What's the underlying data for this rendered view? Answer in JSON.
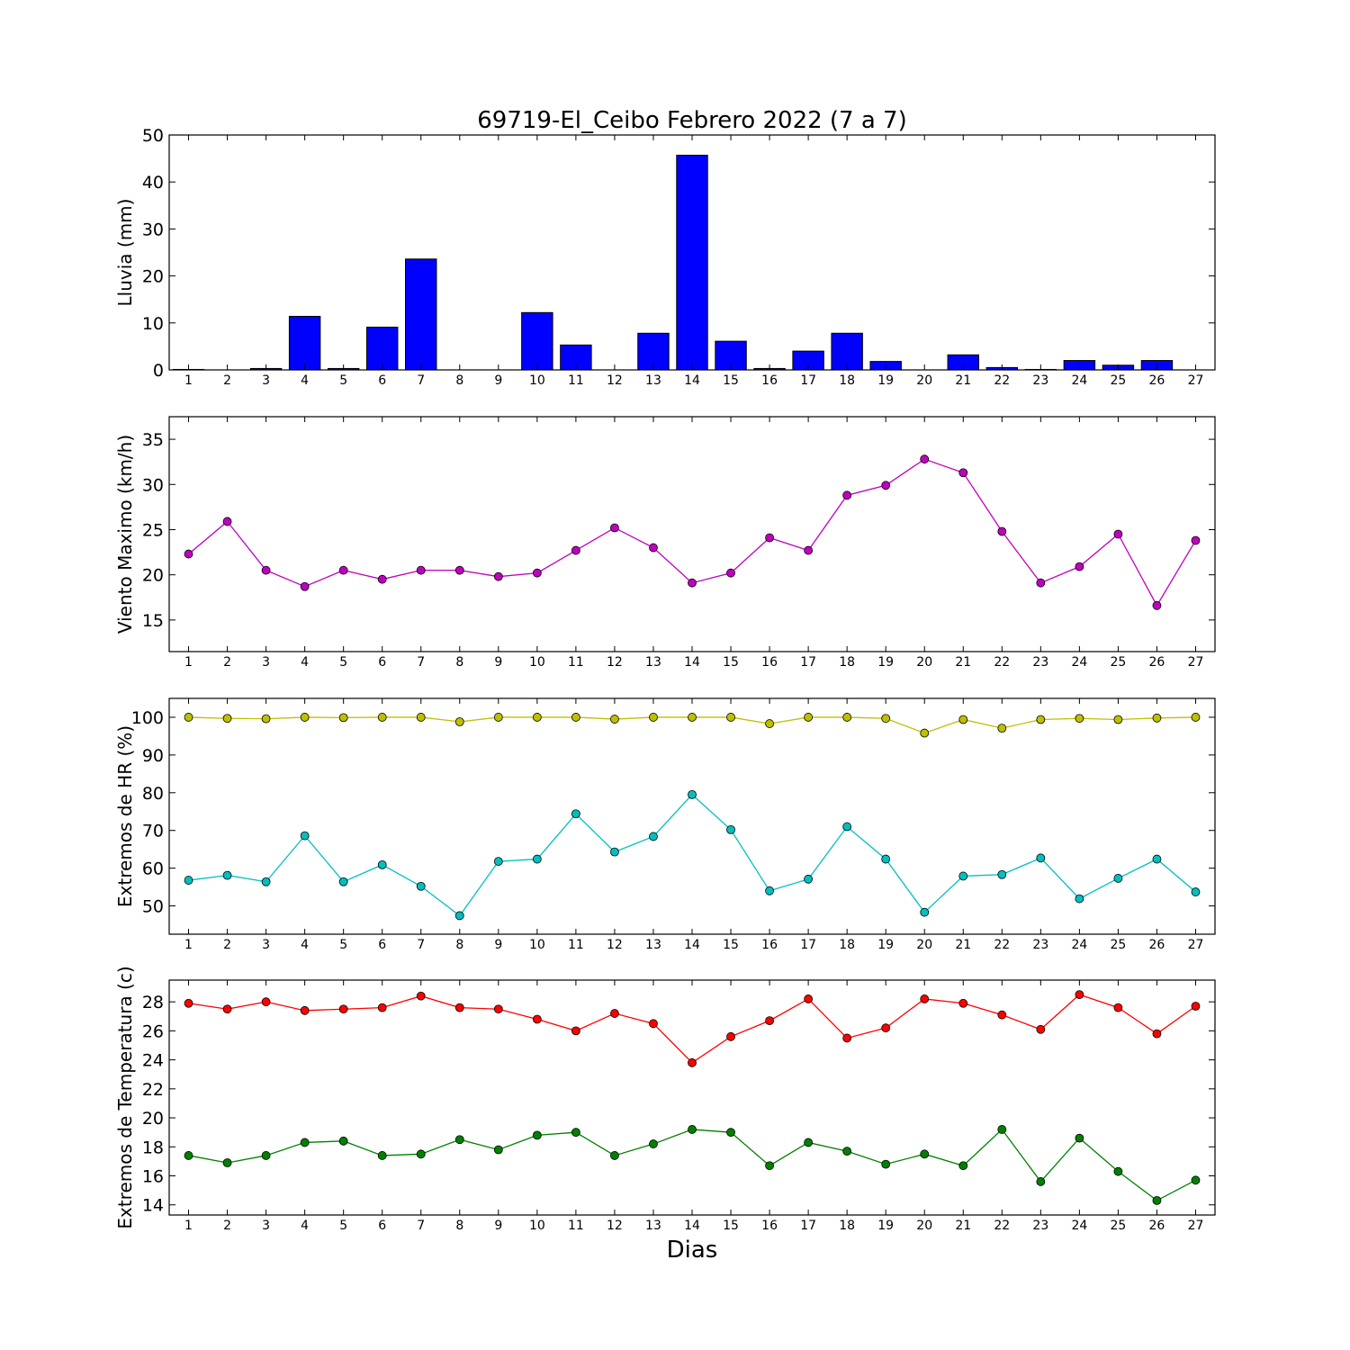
{
  "figure": {
    "title": "69719-El_Ceibo Febrero 2022  (7 a 7)",
    "xlabel": "Dias"
  },
  "chart_data": [
    {
      "id": "rain",
      "type": "bar",
      "ylabel": "Lluvia (mm)",
      "x": [
        1,
        2,
        3,
        4,
        5,
        6,
        7,
        8,
        9,
        10,
        11,
        12,
        13,
        14,
        15,
        16,
        17,
        18,
        19,
        20,
        21,
        22,
        23,
        24,
        25,
        26,
        27
      ],
      "ylim": [
        0,
        50
      ],
      "yticks": [
        0,
        10,
        20,
        30,
        40,
        50
      ],
      "series": [
        {
          "color": "#0000ff",
          "values": [
            0.1,
            0,
            0.3,
            11.4,
            0.3,
            9.1,
            23.6,
            0,
            0,
            12.2,
            5.3,
            0,
            7.8,
            45.7,
            6.1,
            0.3,
            4.0,
            7.8,
            1.8,
            0,
            3.2,
            0.5,
            0.1,
            2.0,
            1.0,
            2.0,
            0
          ]
        }
      ]
    },
    {
      "id": "wind",
      "type": "line",
      "ylabel": "Viento Maximo (km/h)",
      "x": [
        1,
        2,
        3,
        4,
        5,
        6,
        7,
        8,
        9,
        10,
        11,
        12,
        13,
        14,
        15,
        16,
        17,
        18,
        19,
        20,
        21,
        22,
        23,
        24,
        25,
        26,
        27
      ],
      "ylim": [
        11.5,
        37.5
      ],
      "yticks": [
        15,
        20,
        25,
        30,
        35
      ],
      "series": [
        {
          "color": "#bf00bf",
          "values": [
            22.3,
            25.9,
            20.5,
            18.7,
            20.5,
            19.5,
            20.5,
            20.5,
            19.8,
            20.2,
            22.7,
            25.2,
            23.0,
            19.1,
            20.2,
            24.1,
            22.7,
            28.8,
            29.9,
            32.8,
            31.3,
            24.8,
            19.1,
            20.9,
            24.5,
            16.6,
            23.8
          ]
        }
      ]
    },
    {
      "id": "humidity",
      "type": "line",
      "ylabel": "Extremos de HR (%)",
      "x": [
        1,
        2,
        3,
        4,
        5,
        6,
        7,
        8,
        9,
        10,
        11,
        12,
        13,
        14,
        15,
        16,
        17,
        18,
        19,
        20,
        21,
        22,
        23,
        24,
        25,
        26,
        27
      ],
      "ylim": [
        42.5,
        105
      ],
      "yticks": [
        50,
        60,
        70,
        80,
        90,
        100
      ],
      "series": [
        {
          "color": "#bfbf00",
          "values": [
            100,
            99.7,
            99.6,
            100,
            99.9,
            100,
            100,
            98.8,
            100,
            100,
            100,
            99.5,
            100,
            100,
            100,
            98.3,
            100,
            100,
            99.7,
            95.8,
            99.4,
            97.1,
            99.4,
            99.7,
            99.4,
            99.8,
            100
          ]
        },
        {
          "color": "#00bfbf",
          "values": [
            56.8,
            58.1,
            56.4,
            68.6,
            56.4,
            60.9,
            55.2,
            47.4,
            61.8,
            62.4,
            74.4,
            64.3,
            68.4,
            79.5,
            70.2,
            54.0,
            57.1,
            71.0,
            62.4,
            48.3,
            57.9,
            58.3,
            62.7,
            51.9,
            57.3,
            62.4,
            53.7
          ]
        }
      ]
    },
    {
      "id": "temperature",
      "type": "line",
      "ylabel": "Extremos de Temperatura (c)",
      "x": [
        1,
        2,
        3,
        4,
        5,
        6,
        7,
        8,
        9,
        10,
        11,
        12,
        13,
        14,
        15,
        16,
        17,
        18,
        19,
        20,
        21,
        22,
        23,
        24,
        25,
        26,
        27
      ],
      "ylim": [
        13.3,
        29.5
      ],
      "yticks": [
        14,
        16,
        18,
        20,
        22,
        24,
        26,
        28
      ],
      "series": [
        {
          "color": "#ff0000",
          "values": [
            27.9,
            27.5,
            28.0,
            27.4,
            27.5,
            27.6,
            28.4,
            27.6,
            27.5,
            26.8,
            26.0,
            27.2,
            26.5,
            23.8,
            25.6,
            26.7,
            28.2,
            25.5,
            26.2,
            28.2,
            27.9,
            27.1,
            26.1,
            28.5,
            27.6,
            25.8,
            27.7
          ]
        },
        {
          "color": "#008000",
          "values": [
            17.4,
            16.9,
            17.4,
            18.3,
            18.4,
            17.4,
            17.5,
            18.5,
            17.8,
            18.8,
            19.0,
            17.4,
            18.2,
            19.2,
            19.0,
            16.7,
            18.3,
            17.7,
            16.8,
            17.5,
            16.7,
            19.2,
            15.6,
            18.6,
            16.3,
            14.3,
            15.7
          ]
        }
      ]
    }
  ]
}
